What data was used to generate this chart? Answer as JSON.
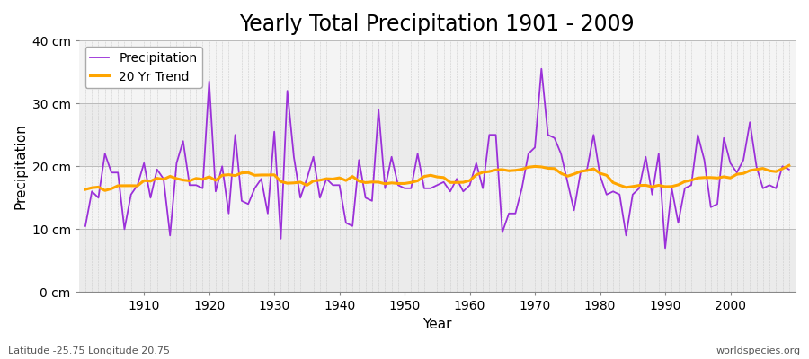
{
  "title": "Yearly Total Precipitation 1901 - 2009",
  "xlabel": "Year",
  "ylabel": "Precipitation",
  "lat_lon_label": "Latitude -25.75 Longitude 20.75",
  "watermark": "worldspecies.org",
  "years": [
    1901,
    1902,
    1903,
    1904,
    1905,
    1906,
    1907,
    1908,
    1909,
    1910,
    1911,
    1912,
    1913,
    1914,
    1915,
    1916,
    1917,
    1918,
    1919,
    1920,
    1921,
    1922,
    1923,
    1924,
    1925,
    1926,
    1927,
    1928,
    1929,
    1930,
    1931,
    1932,
    1933,
    1934,
    1935,
    1936,
    1937,
    1938,
    1939,
    1940,
    1941,
    1942,
    1943,
    1944,
    1945,
    1946,
    1947,
    1948,
    1949,
    1950,
    1951,
    1952,
    1953,
    1954,
    1955,
    1956,
    1957,
    1958,
    1959,
    1960,
    1961,
    1962,
    1963,
    1964,
    1965,
    1966,
    1967,
    1968,
    1969,
    1970,
    1971,
    1972,
    1973,
    1974,
    1975,
    1976,
    1977,
    1978,
    1979,
    1980,
    1981,
    1982,
    1983,
    1984,
    1985,
    1986,
    1987,
    1988,
    1989,
    1990,
    1991,
    1992,
    1993,
    1994,
    1995,
    1996,
    1997,
    1998,
    1999,
    2000,
    2001,
    2002,
    2003,
    2004,
    2005,
    2006,
    2007,
    2008,
    2009
  ],
  "precipitation": [
    10.5,
    16.0,
    15.0,
    22.0,
    19.0,
    19.0,
    10.0,
    15.5,
    17.0,
    20.5,
    15.0,
    19.5,
    18.0,
    9.0,
    20.5,
    24.0,
    17.0,
    17.0,
    16.5,
    33.5,
    16.0,
    20.0,
    12.5,
    25.0,
    14.5,
    14.0,
    16.5,
    18.0,
    12.5,
    25.5,
    8.5,
    32.0,
    21.5,
    15.0,
    18.0,
    21.5,
    15.0,
    18.0,
    17.0,
    17.0,
    11.0,
    10.5,
    21.0,
    15.0,
    14.5,
    29.0,
    16.5,
    21.5,
    17.0,
    16.5,
    16.5,
    22.0,
    16.5,
    16.5,
    17.0,
    17.5,
    16.0,
    18.0,
    16.0,
    17.0,
    20.5,
    16.5,
    25.0,
    25.0,
    9.5,
    12.5,
    12.5,
    16.5,
    22.0,
    23.0,
    35.5,
    25.0,
    24.5,
    22.0,
    17.5,
    13.0,
    19.0,
    19.5,
    25.0,
    18.5,
    15.5,
    16.0,
    15.5,
    9.0,
    15.5,
    16.5,
    21.5,
    15.5,
    22.0,
    7.0,
    16.5,
    11.0,
    16.5,
    17.0,
    25.0,
    21.0,
    13.5,
    14.0,
    24.5,
    20.5,
    19.0,
    21.0,
    27.0,
    20.0,
    16.5,
    17.0,
    16.5,
    20.0,
    19.5
  ],
  "precip_color": "#9B30D9",
  "trend_color": "#FFA500",
  "fig_bg_color": "#FFFFFF",
  "plot_bg_color": "#E8E8E8",
  "band_light_color": "#F0F0F0",
  "band_dark_color": "#E0E0E0",
  "grid_color": "#CCCCCC",
  "ylim": [
    0,
    40
  ],
  "yticks": [
    0,
    10,
    20,
    30,
    40
  ],
  "ytick_labels": [
    "0 cm",
    "10 cm",
    "20 cm",
    "30 cm",
    "40 cm"
  ],
  "xtick_interval": 10,
  "title_fontsize": 17,
  "axis_label_fontsize": 11,
  "tick_fontsize": 10,
  "legend_fontsize": 10,
  "trend_window": 20
}
